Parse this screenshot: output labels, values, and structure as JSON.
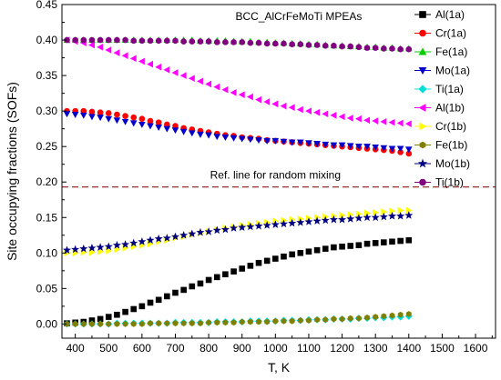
{
  "chart_data": {
    "type": "scatter",
    "title": "",
    "xlabel": "T, K",
    "ylabel": "Site occupying fractions (SOFs)",
    "xlim": [
      360,
      1660
    ],
    "ylim": [
      -0.02,
      0.45
    ],
    "xticks": [
      400,
      500,
      600,
      700,
      800,
      900,
      1000,
      1100,
      1200,
      1300,
      1400,
      1500,
      1600
    ],
    "yticks": [
      0.0,
      0.05,
      0.1,
      0.15,
      0.2,
      0.25,
      0.3,
      0.35,
      0.4,
      0.45
    ],
    "ytick_labels": [
      "0.00",
      "0.05",
      "0.10",
      "0.15",
      "0.20",
      "0.25",
      "0.30",
      "0.35",
      "0.40",
      "0.45"
    ],
    "grid": false,
    "legend_position": "top-right",
    "annotations": [
      {
        "text": "BCC_AlCrFeMoTi MPEAs",
        "x": 1070,
        "y": 0.428
      },
      {
        "text": "Ref. line for random mixing",
        "x": 1000,
        "y": 0.2045
      }
    ],
    "reference_line": {
      "y": 0.193,
      "color": "#8b1a1a",
      "style": "dashed"
    },
    "x": [
      375,
      400,
      425,
      450,
      475,
      500,
      525,
      550,
      575,
      600,
      625,
      650,
      675,
      700,
      725,
      750,
      775,
      800,
      825,
      850,
      875,
      900,
      925,
      950,
      975,
      1000,
      1025,
      1050,
      1075,
      1100,
      1125,
      1150,
      1175,
      1200,
      1225,
      1250,
      1275,
      1300,
      1325,
      1350,
      1375,
      1400
    ],
    "series": [
      {
        "name": "Al(1a)",
        "color": "#000000",
        "marker": "square",
        "values": [
          0.001,
          0.002,
          0.003,
          0.005,
          0.007,
          0.01,
          0.013,
          0.017,
          0.021,
          0.025,
          0.03,
          0.034,
          0.039,
          0.044,
          0.048,
          0.053,
          0.057,
          0.062,
          0.066,
          0.07,
          0.074,
          0.078,
          0.082,
          0.086,
          0.089,
          0.092,
          0.095,
          0.098,
          0.1,
          0.102,
          0.104,
          0.106,
          0.108,
          0.109,
          0.11,
          0.111,
          0.113,
          0.114,
          0.115,
          0.116,
          0.117,
          0.118
        ]
      },
      {
        "name": "Cr(1a)",
        "color": "#ff0000",
        "marker": "circle",
        "values": [
          0.3,
          0.3,
          0.3,
          0.299,
          0.298,
          0.297,
          0.295,
          0.293,
          0.291,
          0.289,
          0.286,
          0.284,
          0.281,
          0.279,
          0.276,
          0.274,
          0.272,
          0.27,
          0.268,
          0.266,
          0.265,
          0.263,
          0.262,
          0.261,
          0.259,
          0.258,
          0.257,
          0.256,
          0.255,
          0.254,
          0.253,
          0.252,
          0.251,
          0.25,
          0.249,
          0.248,
          0.247,
          0.246,
          0.245,
          0.244,
          0.242,
          0.24
        ]
      },
      {
        "name": "Fe(1a)",
        "color": "#00cc00",
        "marker": "triangle-up",
        "values": [
          0.4,
          0.4,
          0.4,
          0.4,
          0.4,
          0.4,
          0.4,
          0.4,
          0.4,
          0.4,
          0.4,
          0.4,
          0.4,
          0.4,
          0.4,
          0.4,
          0.399,
          0.399,
          0.399,
          0.399,
          0.398,
          0.398,
          0.398,
          0.397,
          0.397,
          0.396,
          0.396,
          0.395,
          0.395,
          0.394,
          0.394,
          0.393,
          0.392,
          0.392,
          0.391,
          0.391,
          0.39,
          0.39,
          0.389,
          0.389,
          0.388,
          0.388
        ]
      },
      {
        "name": "Mo(1a)",
        "color": "#0000cc",
        "marker": "triangle-down",
        "values": [
          0.296,
          0.295,
          0.294,
          0.292,
          0.291,
          0.289,
          0.287,
          0.285,
          0.283,
          0.281,
          0.279,
          0.277,
          0.275,
          0.273,
          0.271,
          0.269,
          0.267,
          0.266,
          0.264,
          0.263,
          0.262,
          0.261,
          0.26,
          0.259,
          0.258,
          0.258,
          0.257,
          0.256,
          0.256,
          0.255,
          0.254,
          0.253,
          0.252,
          0.252,
          0.251,
          0.25,
          0.25,
          0.249,
          0.248,
          0.247,
          0.247,
          0.246
        ]
      },
      {
        "name": "Ti(1a)",
        "color": "#00dddd",
        "marker": "diamond",
        "values": [
          0.0,
          0.0,
          0.0,
          0.0,
          0.0,
          0.0,
          0.001,
          0.001,
          0.001,
          0.001,
          0.001,
          0.001,
          0.001,
          0.002,
          0.002,
          0.002,
          0.002,
          0.002,
          0.003,
          0.003,
          0.003,
          0.003,
          0.004,
          0.004,
          0.004,
          0.004,
          0.005,
          0.005,
          0.005,
          0.006,
          0.006,
          0.006,
          0.007,
          0.007,
          0.007,
          0.008,
          0.008,
          0.009,
          0.009,
          0.01,
          0.01,
          0.011
        ]
      },
      {
        "name": "Al(1b)",
        "color": "#ff00ff",
        "marker": "triangle-left",
        "values": [
          0.4,
          0.398,
          0.396,
          0.393,
          0.39,
          0.386,
          0.382,
          0.378,
          0.374,
          0.37,
          0.366,
          0.362,
          0.358,
          0.354,
          0.35,
          0.346,
          0.342,
          0.338,
          0.334,
          0.33,
          0.326,
          0.323,
          0.32,
          0.316,
          0.313,
          0.31,
          0.307,
          0.305,
          0.302,
          0.3,
          0.298,
          0.296,
          0.294,
          0.292,
          0.29,
          0.289,
          0.287,
          0.286,
          0.285,
          0.284,
          0.283,
          0.282
        ]
      },
      {
        "name": "Cr(1b)",
        "color": "#ffff00",
        "marker": "triangle-right",
        "values": [
          0.1,
          0.1,
          0.101,
          0.101,
          0.102,
          0.103,
          0.105,
          0.107,
          0.109,
          0.111,
          0.113,
          0.116,
          0.118,
          0.121,
          0.123,
          0.126,
          0.128,
          0.13,
          0.133,
          0.135,
          0.137,
          0.139,
          0.14,
          0.142,
          0.143,
          0.145,
          0.146,
          0.147,
          0.148,
          0.149,
          0.15,
          0.151,
          0.152,
          0.153,
          0.154,
          0.155,
          0.156,
          0.157,
          0.158,
          0.159,
          0.16,
          0.16
        ]
      },
      {
        "name": "Fe(1b)",
        "color": "#808000",
        "marker": "hexagon",
        "values": [
          0.0,
          0.0,
          0.0,
          0.0,
          0.0,
          0.0,
          0.0,
          0.0,
          0.0,
          0.0,
          0.001,
          0.001,
          0.001,
          0.001,
          0.001,
          0.001,
          0.001,
          0.002,
          0.002,
          0.002,
          0.002,
          0.003,
          0.003,
          0.003,
          0.003,
          0.004,
          0.004,
          0.004,
          0.005,
          0.005,
          0.006,
          0.006,
          0.007,
          0.007,
          0.008,
          0.008,
          0.009,
          0.01,
          0.011,
          0.012,
          0.013,
          0.014
        ]
      },
      {
        "name": "Mo(1b)",
        "color": "#000080",
        "marker": "star",
        "values": [
          0.104,
          0.105,
          0.106,
          0.107,
          0.108,
          0.109,
          0.111,
          0.112,
          0.114,
          0.116,
          0.118,
          0.12,
          0.121,
          0.123,
          0.125,
          0.127,
          0.129,
          0.13,
          0.132,
          0.133,
          0.135,
          0.136,
          0.137,
          0.138,
          0.139,
          0.14,
          0.141,
          0.142,
          0.143,
          0.144,
          0.145,
          0.146,
          0.147,
          0.147,
          0.148,
          0.149,
          0.15,
          0.15,
          0.151,
          0.152,
          0.152,
          0.153
        ]
      },
      {
        "name": "Ti(1b)",
        "color": "#800080",
        "marker": "circle",
        "values": [
          0.4,
          0.4,
          0.4,
          0.4,
          0.4,
          0.4,
          0.4,
          0.4,
          0.399,
          0.399,
          0.399,
          0.399,
          0.399,
          0.399,
          0.398,
          0.398,
          0.398,
          0.398,
          0.397,
          0.397,
          0.397,
          0.397,
          0.396,
          0.396,
          0.395,
          0.395,
          0.395,
          0.394,
          0.394,
          0.393,
          0.393,
          0.392,
          0.392,
          0.391,
          0.391,
          0.39,
          0.389,
          0.389,
          0.388,
          0.388,
          0.387,
          0.387
        ]
      }
    ]
  }
}
